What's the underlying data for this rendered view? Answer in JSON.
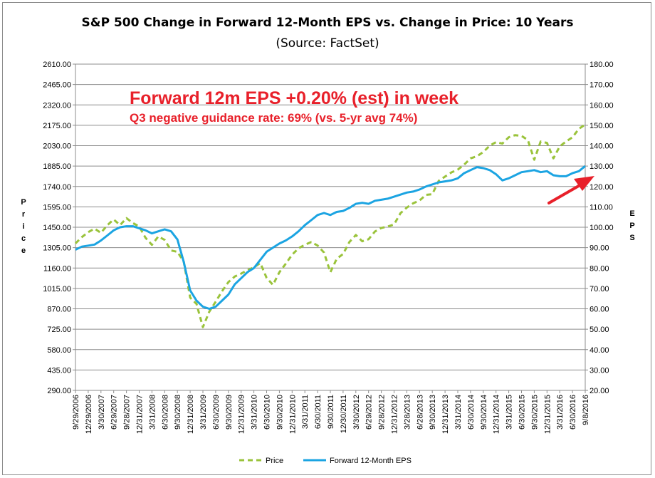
{
  "chart_data": {
    "type": "line",
    "title": "S&P 500 Change in Forward 12-Month EPS vs. Change in Price: 10 Years",
    "subtitle": "(Source: FactSet)",
    "ylabel_left": "Price",
    "ylabel_right": "EPS",
    "ylim_left": [
      290,
      2610
    ],
    "ylim_right": [
      20,
      180
    ],
    "yticks_left": [
      "2610.00",
      "2465.00",
      "2320.00",
      "2175.00",
      "2030.00",
      "1885.00",
      "1740.00",
      "1595.00",
      "1450.00",
      "1305.00",
      "1160.00",
      "1015.00",
      "870.00",
      "725.00",
      "580.00",
      "435.00",
      "290.00"
    ],
    "yticks_right": [
      "180.00",
      "170.00",
      "160.00",
      "150.00",
      "140.00",
      "130.00",
      "120.00",
      "110.00",
      "100.00",
      "90.00",
      "80.00",
      "70.00",
      "60.00",
      "50.00",
      "40.00",
      "30.00",
      "20.00"
    ],
    "x_labels": [
      "9/29/2006",
      "12/29/2006",
      "3/30/2007",
      "6/29/2007",
      "9/28/2007",
      "12/31/2007",
      "3/31/2008",
      "6/30/2008",
      "9/30/2008",
      "12/31/2008",
      "3/31/2009",
      "6/30/2009",
      "9/30/2009",
      "12/31/2009",
      "3/31/2010",
      "6/30/2010",
      "9/30/2010",
      "12/31/2010",
      "3/31/2011",
      "6/30/2011",
      "9/30/2011",
      "12/30/2011",
      "3/30/2012",
      "6/29/2012",
      "9/28/2012",
      "12/31/2012",
      "3/28/2013",
      "6/28/2013",
      "9/30/2013",
      "12/31/2013",
      "3/31/2014",
      "6/30/2014",
      "9/30/2014",
      "12/31/2014",
      "3/31/2015",
      "6/30/2015",
      "9/30/2015",
      "12/31/2015",
      "3/31/2016",
      "6/30/2016",
      "9/8/2016"
    ],
    "grid": true,
    "legend_position": "bottom",
    "annotations": [
      "Forward 12m EPS +0.20% (est) in week",
      "Q3 negative guidance rate: 69% (vs. 5-yr avg 74%)"
    ],
    "series": [
      {
        "name": "Price",
        "axis": "left",
        "color": "#9ac33b",
        "style": "dashed",
        "points": [
          [
            0,
            1335
          ],
          [
            0.5,
            1380
          ],
          [
            1,
            1415
          ],
          [
            1.5,
            1440
          ],
          [
            2,
            1410
          ],
          [
            2.5,
            1465
          ],
          [
            3,
            1505
          ],
          [
            3.5,
            1465
          ],
          [
            4,
            1515
          ],
          [
            4.5,
            1480
          ],
          [
            5,
            1455
          ],
          [
            5.5,
            1375
          ],
          [
            6,
            1325
          ],
          [
            6.5,
            1385
          ],
          [
            7,
            1360
          ],
          [
            7.5,
            1285
          ],
          [
            8,
            1275
          ],
          [
            8.5,
            1205
          ],
          [
            9,
            950
          ],
          [
            9.5,
            905
          ],
          [
            10,
            740
          ],
          [
            10.5,
            850
          ],
          [
            11,
            920
          ],
          [
            11.5,
            995
          ],
          [
            12,
            1060
          ],
          [
            12.5,
            1100
          ],
          [
            13,
            1120
          ],
          [
            13.5,
            1145
          ],
          [
            14,
            1165
          ],
          [
            14.5,
            1195
          ],
          [
            15,
            1090
          ],
          [
            15.5,
            1040
          ],
          [
            16,
            1130
          ],
          [
            16.5,
            1190
          ],
          [
            17,
            1255
          ],
          [
            17.5,
            1300
          ],
          [
            18,
            1325
          ],
          [
            18.5,
            1345
          ],
          [
            19,
            1320
          ],
          [
            19.5,
            1270
          ],
          [
            20,
            1130
          ],
          [
            20.5,
            1225
          ],
          [
            21,
            1260
          ],
          [
            21.5,
            1345
          ],
          [
            22,
            1395
          ],
          [
            22.5,
            1350
          ],
          [
            23,
            1365
          ],
          [
            23.5,
            1420
          ],
          [
            24,
            1445
          ],
          [
            24.5,
            1455
          ],
          [
            25,
            1470
          ],
          [
            25.5,
            1550
          ],
          [
            26,
            1590
          ],
          [
            26.5,
            1620
          ],
          [
            27,
            1640
          ],
          [
            27.5,
            1680
          ],
          [
            28,
            1685
          ],
          [
            28.5,
            1780
          ],
          [
            29,
            1810
          ],
          [
            29.5,
            1840
          ],
          [
            30,
            1860
          ],
          [
            30.5,
            1895
          ],
          [
            31,
            1940
          ],
          [
            31.5,
            1955
          ],
          [
            32,
            1985
          ],
          [
            32.5,
            2030
          ],
          [
            33,
            2055
          ],
          [
            33.5,
            2045
          ],
          [
            34,
            2090
          ],
          [
            34.5,
            2105
          ],
          [
            35,
            2100
          ],
          [
            35.5,
            2070
          ],
          [
            36,
            1930
          ],
          [
            36.5,
            2060
          ],
          [
            37,
            2050
          ],
          [
            37.5,
            1940
          ],
          [
            38,
            2025
          ],
          [
            38.5,
            2060
          ],
          [
            39,
            2090
          ],
          [
            39.5,
            2150
          ],
          [
            40,
            2180
          ]
        ]
      },
      {
        "name": "Forward 12-Month EPS",
        "axis": "right",
        "color": "#1ba4e2",
        "style": "solid",
        "points": [
          [
            0,
            89
          ],
          [
            0.5,
            90.5
          ],
          [
            1,
            91
          ],
          [
            1.5,
            91.5
          ],
          [
            2,
            93.5
          ],
          [
            2.5,
            96
          ],
          [
            3,
            98.5
          ],
          [
            3.5,
            100
          ],
          [
            4,
            100.5
          ],
          [
            4.5,
            100.5
          ],
          [
            5,
            99.5
          ],
          [
            5.5,
            98.5
          ],
          [
            6,
            97
          ],
          [
            6.5,
            98
          ],
          [
            7,
            99
          ],
          [
            7.5,
            98
          ],
          [
            8,
            94
          ],
          [
            8.5,
            83
          ],
          [
            9,
            69
          ],
          [
            9.5,
            64
          ],
          [
            10,
            61
          ],
          [
            10.5,
            60
          ],
          [
            11,
            61
          ],
          [
            11.5,
            64
          ],
          [
            12,
            67
          ],
          [
            12.5,
            72
          ],
          [
            13,
            75
          ],
          [
            13.5,
            78
          ],
          [
            14,
            80
          ],
          [
            14.5,
            84
          ],
          [
            15,
            88
          ],
          [
            15.5,
            90
          ],
          [
            16,
            92
          ],
          [
            16.5,
            93.5
          ],
          [
            17,
            95.5
          ],
          [
            17.5,
            98
          ],
          [
            18,
            101
          ],
          [
            18.5,
            103.5
          ],
          [
            19,
            106
          ],
          [
            19.5,
            107
          ],
          [
            20,
            106
          ],
          [
            20.5,
            107.5
          ],
          [
            21,
            108
          ],
          [
            21.5,
            109.5
          ],
          [
            22,
            111.5
          ],
          [
            22.5,
            112
          ],
          [
            23,
            111.5
          ],
          [
            23.5,
            113
          ],
          [
            24,
            113.5
          ],
          [
            24.5,
            114
          ],
          [
            25,
            115
          ],
          [
            25.5,
            116
          ],
          [
            26,
            117
          ],
          [
            26.5,
            117.5
          ],
          [
            27,
            118.5
          ],
          [
            27.5,
            120
          ],
          [
            28,
            121
          ],
          [
            28.5,
            122
          ],
          [
            29,
            122.5
          ],
          [
            29.5,
            123
          ],
          [
            30,
            124
          ],
          [
            30.5,
            126.5
          ],
          [
            31,
            128
          ],
          [
            31.5,
            129.5
          ],
          [
            32,
            129
          ],
          [
            32.5,
            128
          ],
          [
            33,
            126
          ],
          [
            33.5,
            123
          ],
          [
            34,
            124
          ],
          [
            34.5,
            125.5
          ],
          [
            35,
            127
          ],
          [
            35.5,
            127.5
          ],
          [
            36,
            128
          ],
          [
            36.5,
            127
          ],
          [
            37,
            127.5
          ],
          [
            37.5,
            125.5
          ],
          [
            38,
            125
          ],
          [
            38.5,
            125
          ],
          [
            39,
            126.5
          ],
          [
            39.5,
            127.5
          ],
          [
            40,
            130
          ]
        ]
      }
    ]
  }
}
